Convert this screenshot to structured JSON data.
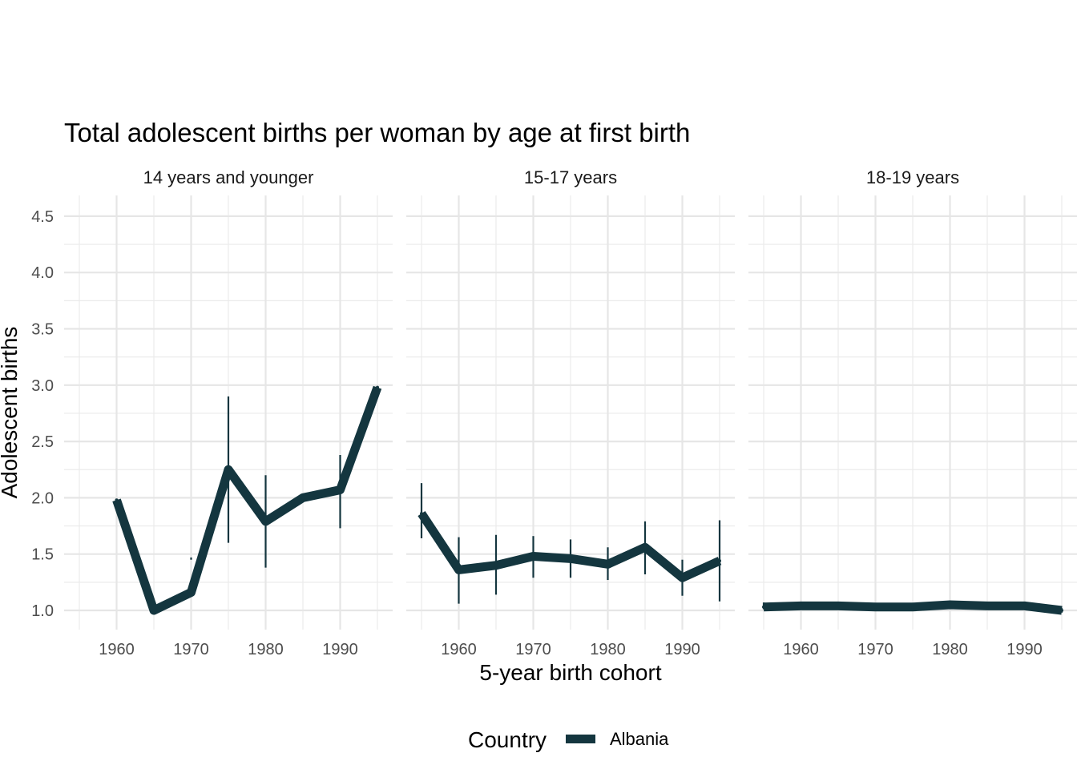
{
  "chart_data": {
    "type": "line",
    "title": "Total adolescent births per woman by age at first birth",
    "xlabel": "5-year birth cohort",
    "ylabel": "Adolescent births",
    "xlim": [
      1954,
      1997
    ],
    "ylim": [
      0.9,
      4.65
    ],
    "x_ticks": [
      1960,
      1970,
      1980,
      1990
    ],
    "y_ticks": [
      1.0,
      1.5,
      2.0,
      2.5,
      3.0,
      3.5,
      4.0,
      4.5
    ],
    "y_tick_labels": [
      "1.0",
      "1.5",
      "2.0",
      "2.5",
      "3.0",
      "3.5",
      "4.0",
      "4.5"
    ],
    "grid": true,
    "legend": {
      "title": "Country",
      "position": "bottom",
      "entries": [
        "Albania"
      ]
    },
    "series_color": "#14363f",
    "panels": [
      {
        "label": "14 years and younger",
        "series": [
          {
            "name": "Albania",
            "x": [
              1960,
              1965,
              1970,
              1975,
              1980,
              1985,
              1990,
              1995
            ],
            "y": [
              1.98,
              1.0,
              1.16,
              2.25,
              1.79,
              2.0,
              2.07,
              2.98
            ],
            "err_low": [
              null,
              null,
              1.45,
              1.6,
              1.38,
              null,
              1.73,
              null
            ],
            "err_high": [
              null,
              null,
              1.47,
              2.9,
              2.2,
              null,
              2.38,
              null
            ]
          }
        ]
      },
      {
        "label": "15-17 years",
        "series": [
          {
            "name": "Albania",
            "x": [
              1955,
              1960,
              1965,
              1970,
              1975,
              1980,
              1985,
              1990,
              1995
            ],
            "y": [
              1.86,
              1.36,
              1.4,
              1.48,
              1.46,
              1.41,
              1.56,
              1.29,
              1.44
            ],
            "err_low": [
              1.64,
              1.06,
              1.14,
              1.29,
              1.29,
              1.27,
              1.32,
              1.13,
              1.08
            ],
            "err_high": [
              2.13,
              1.65,
              1.67,
              1.66,
              1.63,
              1.56,
              1.79,
              1.45,
              1.8
            ]
          }
        ]
      },
      {
        "label": "18-19 years",
        "series": [
          {
            "name": "Albania",
            "x": [
              1955,
              1960,
              1965,
              1970,
              1975,
              1980,
              1985,
              1990,
              1995
            ],
            "y": [
              1.03,
              1.04,
              1.04,
              1.03,
              1.03,
              1.05,
              1.04,
              1.04,
              1.0
            ],
            "err_low": [
              1.01,
              1.02,
              1.02,
              1.01,
              1.01,
              1.03,
              1.02,
              1.02,
              0.98
            ],
            "err_high": [
              1.07,
              1.06,
              1.06,
              1.05,
              1.05,
              1.07,
              1.06,
              1.06,
              1.02
            ]
          }
        ]
      }
    ]
  }
}
